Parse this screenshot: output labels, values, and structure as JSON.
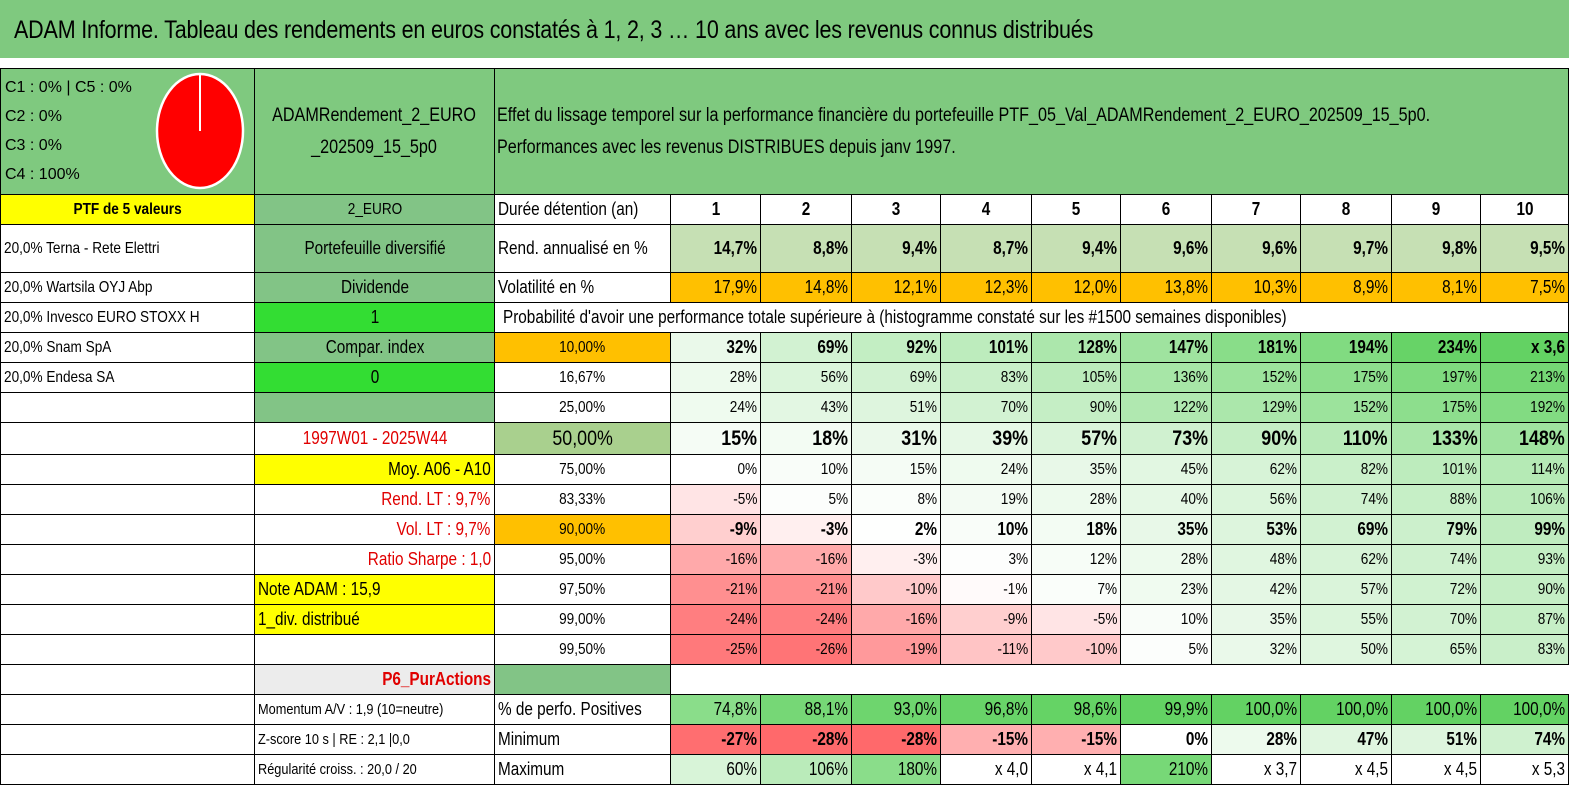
{
  "title": "ADAM Informe. Tableau des rendements en euros constatés à 1, 2, 3 … 10 ans avec les revenus connus distribués",
  "pie": {
    "legend": [
      "C1 : 0% | C5 : 0%",
      "C2 : 0%",
      "C3 : 0%",
      "C4 : 100%"
    ],
    "color": "#ff0000"
  },
  "header": {
    "portfolio_name": "ADAMRendement_2_EURO _202509_15_5p0",
    "description_line1": "Effet du lissage temporel sur la performance financière du portefeuille PTF_05_Val_ADAMRendement_2_EURO_202509_15_5p0.",
    "description_line2": "Performances avec les revenus DISTRIBUES depuis janv 1997."
  },
  "left": {
    "ptf_label": "PTF de 5 valeurs",
    "holdings": [
      "20,0% Terna - Rete Elettri",
      "20,0% Wartsila OYJ Abp",
      "20,0% Invesco EURO STOXX H",
      "20,0% Snam SpA",
      "20,0% Endesa SA"
    ]
  },
  "mid": {
    "currency": "2_EURO",
    "type": "Portefeuille diversifié",
    "dividend_label": "Dividende",
    "dividend_value": "1",
    "compar_label": "Compar. index",
    "compar_value": "0",
    "period": "1997W01 - 2025W44",
    "moy": "Moy. A06 - A10",
    "rend_lt": "Rend. LT : 9,7%",
    "vol_lt": "Vol. LT : 9,7%",
    "sharpe": "Ratio Sharpe : 1,0",
    "note": "Note ADAM : 15,9",
    "div_distrib": "1_div. distribué",
    "p6": "P6_PurActions",
    "momentum": "Momentum A/V : 1,9 (10=neutre)",
    "zscore": "Z-score 10 s | RE : 2,1 |0,0",
    "regularite": "Régularité croiss. : 20,0 / 20"
  },
  "table": {
    "duration_label": "Durée détention (an)",
    "years": [
      "1",
      "2",
      "3",
      "4",
      "5",
      "6",
      "7",
      "8",
      "9",
      "10"
    ],
    "rend_label": "Rend. annualisé en %",
    "rend": [
      "14,7%",
      "8,8%",
      "9,4%",
      "8,7%",
      "9,4%",
      "9,6%",
      "9,6%",
      "9,7%",
      "9,8%",
      "9,5%"
    ],
    "vol_label": "Volatilité en %",
    "vol": [
      "17,9%",
      "14,8%",
      "12,1%",
      "12,3%",
      "12,0%",
      "13,8%",
      "10,3%",
      "8,9%",
      "8,1%",
      "7,5%"
    ],
    "prob_label": "Probabilité d'avoir une performance totale supérieure à (histogramme constaté sur les #1500 semaines disponibles)",
    "quantiles": [
      {
        "p": "10,00%",
        "v": [
          "32%",
          "69%",
          "92%",
          "101%",
          "128%",
          "147%",
          "181%",
          "194%",
          "234%",
          "x 3,6"
        ]
      },
      {
        "p": "16,67%",
        "v": [
          "28%",
          "56%",
          "69%",
          "83%",
          "105%",
          "136%",
          "152%",
          "175%",
          "197%",
          "213%"
        ]
      },
      {
        "p": "25,00%",
        "v": [
          "24%",
          "43%",
          "51%",
          "70%",
          "90%",
          "122%",
          "129%",
          "152%",
          "175%",
          "192%"
        ]
      },
      {
        "p": "50,00%",
        "v": [
          "15%",
          "18%",
          "31%",
          "39%",
          "57%",
          "73%",
          "90%",
          "110%",
          "133%",
          "148%"
        ]
      },
      {
        "p": "75,00%",
        "v": [
          "0%",
          "10%",
          "15%",
          "24%",
          "35%",
          "45%",
          "62%",
          "82%",
          "101%",
          "114%"
        ]
      },
      {
        "p": "83,33%",
        "v": [
          "-5%",
          "5%",
          "8%",
          "19%",
          "28%",
          "40%",
          "56%",
          "74%",
          "88%",
          "106%"
        ]
      },
      {
        "p": "90,00%",
        "v": [
          "-9%",
          "-3%",
          "2%",
          "10%",
          "18%",
          "35%",
          "53%",
          "69%",
          "79%",
          "99%"
        ]
      },
      {
        "p": "95,00%",
        "v": [
          "-16%",
          "-16%",
          "-3%",
          "3%",
          "12%",
          "28%",
          "48%",
          "62%",
          "74%",
          "93%"
        ]
      },
      {
        "p": "97,50%",
        "v": [
          "-21%",
          "-21%",
          "-10%",
          "-1%",
          "7%",
          "23%",
          "42%",
          "57%",
          "72%",
          "90%"
        ]
      },
      {
        "p": "99,00%",
        "v": [
          "-24%",
          "-24%",
          "-16%",
          "-9%",
          "-5%",
          "10%",
          "35%",
          "55%",
          "70%",
          "87%"
        ]
      },
      {
        "p": "99,50%",
        "v": [
          "-25%",
          "-26%",
          "-19%",
          "-11%",
          "-10%",
          "5%",
          "32%",
          "50%",
          "65%",
          "83%"
        ]
      }
    ],
    "pos_label": "% de perfo. Positives",
    "pos": [
      "74,8%",
      "88,1%",
      "93,0%",
      "96,8%",
      "98,6%",
      "99,9%",
      "100,0%",
      "100,0%",
      "100,0%",
      "100,0%"
    ],
    "min_label": "Minimum",
    "min": [
      "-27%",
      "-28%",
      "-28%",
      "-15%",
      "-15%",
      "0%",
      "28%",
      "47%",
      "51%",
      "74%"
    ],
    "max_label": "Maximum",
    "max": [
      "60%",
      "106%",
      "180%",
      "x 4,0",
      "x 4,1",
      "210%",
      "x 3,7",
      "x 4,5",
      "x 4,5",
      "x 5,3"
    ]
  },
  "colors": {
    "title_green": "#7fc97f",
    "highlight_yellow": "#ffff00",
    "highlight_orange": "#ffc000",
    "bright_green": "#33dd33",
    "neg_red": "#f8696b",
    "pos_green": "#63be7b",
    "red_text": "#e00000"
  }
}
